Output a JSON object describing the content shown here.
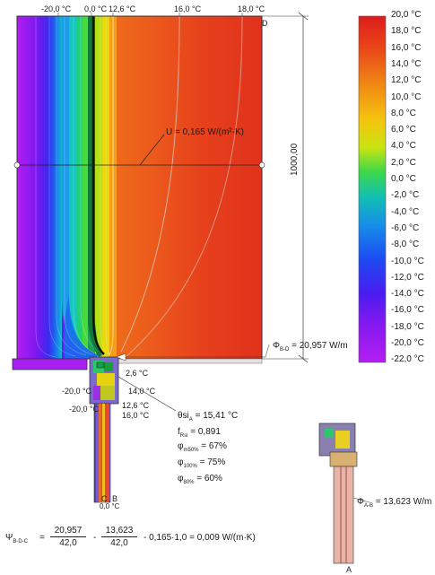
{
  "top_labels": [
    "-20,0 °C",
    "0,0 °C",
    "12,6 °C",
    "16,0 °C",
    "18,0 °C"
  ],
  "corner_labels": {
    "d": "D",
    "c": "C",
    "b": "B",
    "a": "A"
  },
  "dimension_label": "1000,00",
  "u_label": "U = 0,165 W/(m²·K)",
  "flux_main": "Φ",
  "flux_main_sub": "B-D",
  "flux_main_value": "= 20,957 W/m",
  "flux_ref": "Φ",
  "flux_ref_sub": "A-B",
  "flux_ref_value": "= 13,623 W/m",
  "section_temps": {
    "t1": "2,6 °C",
    "t2": "-20,0 °C",
    "t3": "14,0 °C",
    "t4": "-20,0 °C",
    "t5": "12,6 °C",
    "t6": "16,0 °C",
    "t7": "0,0 °C"
  },
  "results": {
    "theta_si_label": "θsi",
    "theta_si_sub": "A",
    "theta_si_value": "= 15,41 °C",
    "f_label": "f",
    "f_sub": "Rsi",
    "f_value": "= 0,891",
    "phi1_label": "φ",
    "phi1_sub": "m50%",
    "phi1_value": "= 67%",
    "phi2_label": "φ",
    "phi2_sub": "100%",
    "phi2_value": "= 75%",
    "phi3_label": "φ",
    "phi3_sub": "80%",
    "phi3_value": "= 60%"
  },
  "color_scale": {
    "labels": [
      "20,0 °C",
      "18,0 °C",
      "16,0 °C",
      "14,0 °C",
      "12,0 °C",
      "10,0 °C",
      "8,0 °C",
      "6,0 °C",
      "4,0 °C",
      "2,0 °C",
      "0,0 °C",
      "-2,0 °C",
      "-4,0 °C",
      "-6,0 °C",
      "-8,0 °C",
      "-10,0 °C",
      "-12,0 °C",
      "-14,0 °C",
      "-16,0 °C",
      "-18,0 °C",
      "-20,0 °C",
      "-22,0 °C"
    ],
    "colors": [
      "#e0201c",
      "#e8421a",
      "#ee6418",
      "#f38a14",
      "#f6b00e",
      "#f2d60a",
      "#c8e60e",
      "#7fe22a",
      "#2fd84e",
      "#18c896",
      "#12b8cc",
      "#1590e6",
      "#1a64f0",
      "#2a3cf0",
      "#4a1ef0",
      "#6a18f0",
      "#8c1af0",
      "#a91cf0",
      "#c01ef0"
    ]
  },
  "formula": {
    "psi": "Ψ",
    "psi_sub": "B-D-C",
    "eq1": "=",
    "frac1_num": "20,957",
    "frac1_den": "42,0",
    "minus1": "-",
    "frac2_num": "13,623",
    "frac2_den": "42,0",
    "tail": "- 0,165·1,0 = 0,009 W/(m·K)"
  }
}
